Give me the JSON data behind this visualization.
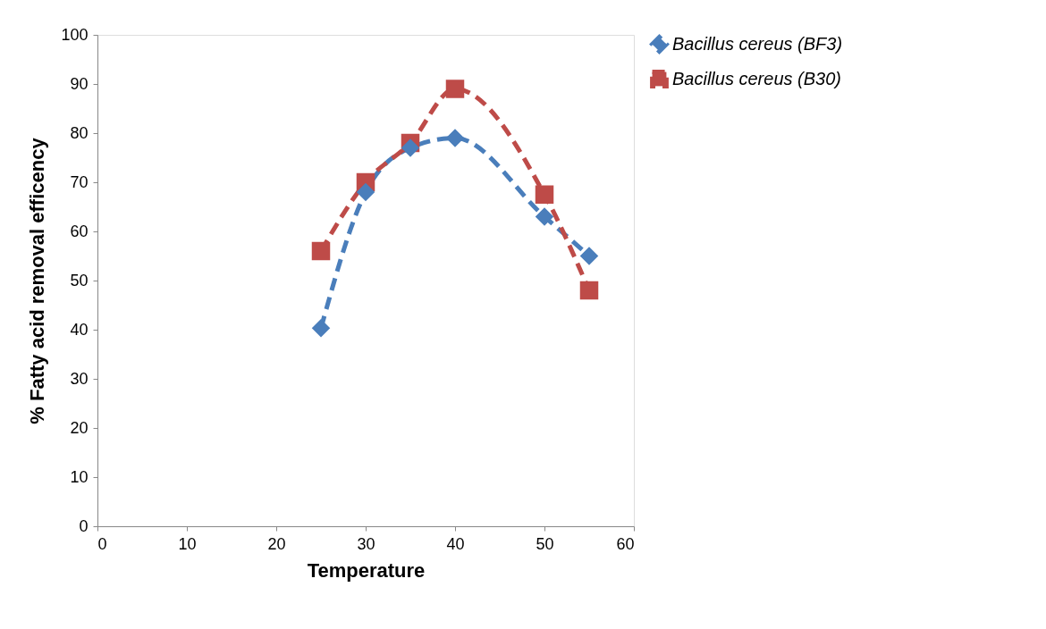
{
  "chart_data": {
    "type": "line",
    "xlabel": "Temperature",
    "ylabel": "% Fatty acid removal efficency",
    "xlim": [
      0,
      60
    ],
    "xticks": [
      0,
      10,
      20,
      30,
      40,
      50,
      60
    ],
    "ylim": [
      0,
      100
    ],
    "yticks": [
      0,
      10,
      20,
      30,
      40,
      50,
      60,
      70,
      80,
      90,
      100
    ],
    "grid": false,
    "legend": "top right",
    "series": [
      {
        "name": "Bacillus cereus (BF3)",
        "color": "#4a7ebb",
        "marker": "diamond",
        "line_style": "dashed",
        "x": [
          25,
          30,
          35,
          40,
          50,
          55
        ],
        "values": [
          40.3,
          68,
          77,
          79,
          63,
          55
        ]
      },
      {
        "name": "Bacillus cereus (B30)",
        "color": "#be4b48",
        "marker": "square",
        "line_style": "dashed",
        "x": [
          25,
          30,
          35,
          40,
          50,
          55
        ],
        "values": [
          56,
          70,
          78,
          89,
          67.5,
          48
        ]
      }
    ]
  }
}
